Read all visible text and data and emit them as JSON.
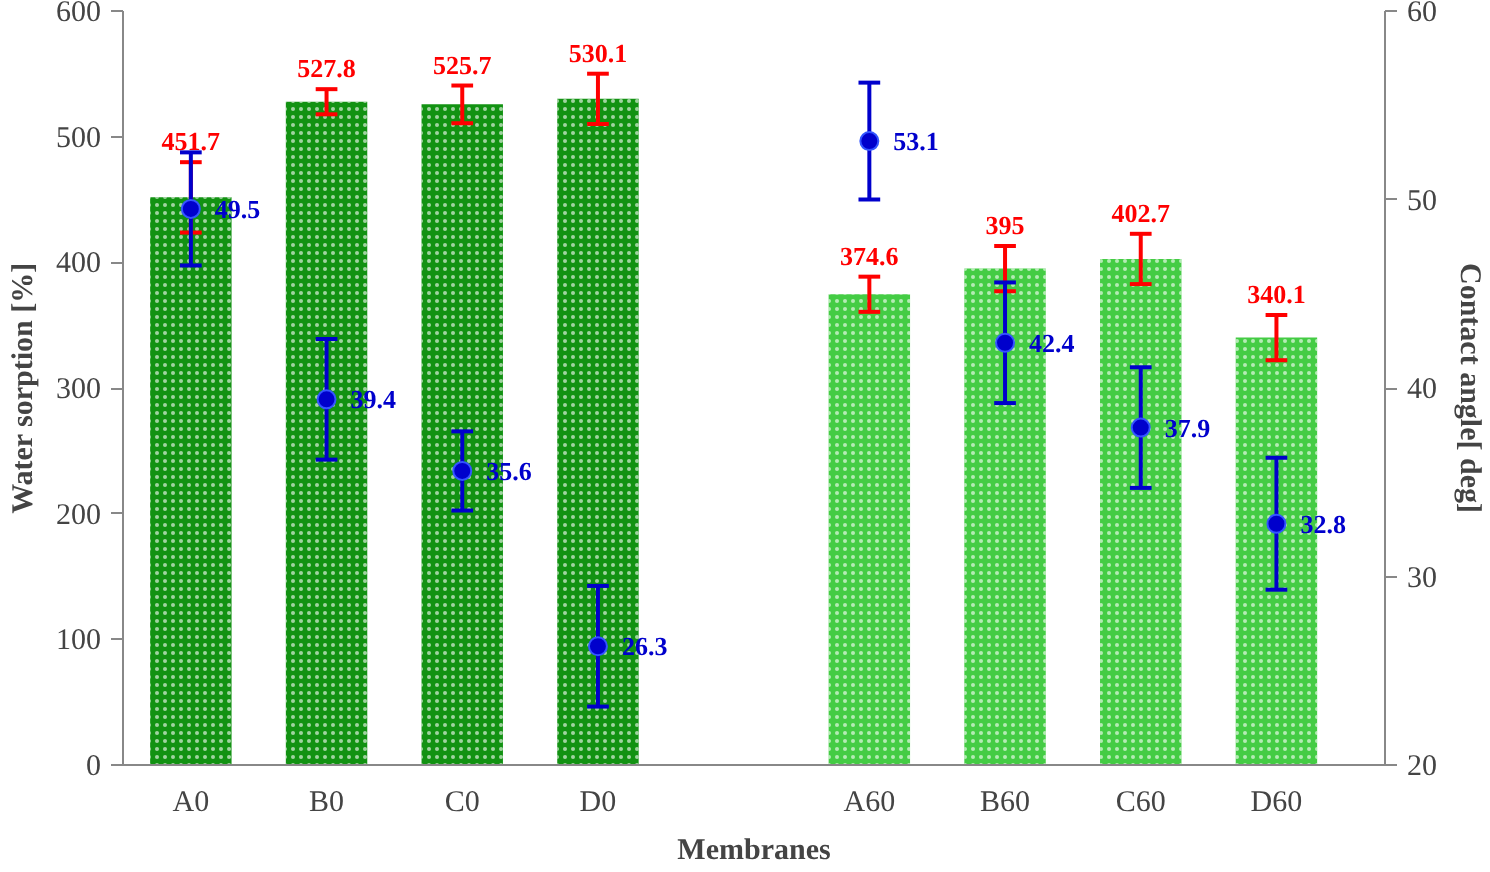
{
  "chart_data": {
    "type": "bar",
    "xlabel": "Membranes",
    "ylabel": "Water sorption [%]",
    "y2label": "Contact angle[ deg]",
    "categories": [
      "A0",
      "B0",
      "C0",
      "D0",
      null,
      "A60",
      "B60",
      "C60",
      "D60"
    ],
    "ylim": [
      0,
      600
    ],
    "yticks": [
      0,
      100,
      200,
      300,
      400,
      500,
      600
    ],
    "y2lim": [
      20,
      60
    ],
    "y2ticks": [
      20,
      30,
      40,
      50,
      60
    ],
    "data_labels": true,
    "grid": false,
    "series": [
      {
        "colors": [
          "#129212",
          "#129212",
          "#129212",
          "#129212",
          null,
          "#44cc44",
          "#44cc44",
          "#44cc44",
          "#44cc44"
        ],
        "values": [
          451.7,
          527.8,
          525.7,
          530.1,
          null,
          374.6,
          395,
          402.7,
          340.1
        ],
        "errors": [
          28,
          10,
          15,
          20,
          null,
          14,
          18,
          20,
          18
        ]
      },
      {
        "type": "scatter",
        "axis": "y2",
        "color": "#0000cc",
        "marker": "circle",
        "values": [
          49.5,
          39.4,
          35.6,
          26.3,
          null,
          53.1,
          42.4,
          37.9,
          32.8
        ],
        "errors": [
          3,
          3.2,
          2.1,
          3.2,
          null,
          3.1,
          3.2,
          3.2,
          3.5
        ]
      }
    ]
  }
}
